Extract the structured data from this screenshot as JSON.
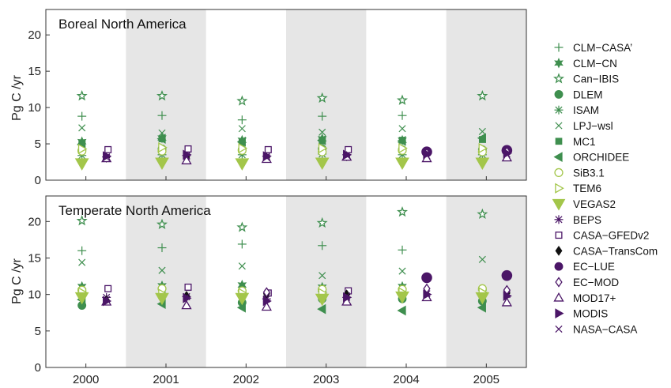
{
  "colors": {
    "green_dark": "#3f8f4f",
    "green_light": "#a3c64a",
    "purple": "#4b1667",
    "band": "#e6e6e6"
  },
  "chart_data": {
    "type": "scatter",
    "ylabel": "Pg C /yr",
    "categories": [
      "2000",
      "2001",
      "2002",
      "2003",
      "2004",
      "2005"
    ],
    "yticks": [
      0,
      5,
      10,
      15,
      20
    ],
    "shaded_categories": [
      "2001",
      "2003",
      "2005"
    ],
    "legend": {
      "placement": "right"
    },
    "models": [
      {
        "name": "CLM−CASA’",
        "marker": "plus",
        "color": "#3f8f4f"
      },
      {
        "name": "CLM−CN",
        "marker": "star6",
        "color": "#3f8f4f"
      },
      {
        "name": "Can−IBIS",
        "marker": "star5open",
        "color": "#3f8f4f"
      },
      {
        "name": "DLEM",
        "marker": "circle",
        "color": "#3f8f4f"
      },
      {
        "name": "ISAM",
        "marker": "asterisk",
        "color": "#3f8f4f"
      },
      {
        "name": "LPJ−wsl",
        "marker": "x",
        "color": "#3f8f4f"
      },
      {
        "name": "MC1",
        "marker": "square",
        "color": "#3f8f4f"
      },
      {
        "name": "ORCHIDEE",
        "marker": "triLeft",
        "color": "#3f8f4f"
      },
      {
        "name": "SiB3.1",
        "marker": "circleOpen",
        "color": "#a3c64a"
      },
      {
        "name": "TEM6",
        "marker": "triRightOpen",
        "color": "#a3c64a"
      },
      {
        "name": "VEGAS2",
        "marker": "triDown",
        "color": "#a3c64a"
      },
      {
        "name": "BEPS",
        "marker": "asterisk",
        "color": "#4b1667"
      },
      {
        "name": "CASA−GFEDv2",
        "marker": "squareOpen",
        "color": "#4b1667"
      },
      {
        "name": "CASA−TransCom",
        "marker": "diamond",
        "color": "#111111"
      },
      {
        "name": "EC−LUE",
        "marker": "circle",
        "color": "#4b1667"
      },
      {
        "name": "EC−MOD",
        "marker": "diamondOpen",
        "color": "#4b1667"
      },
      {
        "name": "MOD17+",
        "marker": "triUpOpen",
        "color": "#4b1667"
      },
      {
        "name": "MODIS",
        "marker": "triRight",
        "color": "#4b1667"
      },
      {
        "name": "NASA−CASA",
        "marker": "x",
        "color": "#4b1667"
      }
    ],
    "panels": [
      {
        "title": "Boreal North America",
        "ylim": [
          0,
          23.5
        ],
        "series": [
          {
            "model": "CLM−CASA’",
            "values": [
              8.8,
              8.9,
              8.3,
              8.8,
              8.9,
              null
            ]
          },
          {
            "model": "CLM−CN",
            "values": [
              5.3,
              5.8,
              5.5,
              5.7,
              5.5,
              null
            ]
          },
          {
            "model": "Can−IBIS",
            "values": [
              11.6,
              11.6,
              10.9,
              11.3,
              11.0,
              11.6
            ]
          },
          {
            "model": "DLEM",
            "values": [
              4.1,
              4.3,
              4.2,
              4.3,
              4.2,
              4.2
            ]
          },
          {
            "model": "ISAM",
            "values": [
              3.4,
              3.5,
              3.5,
              3.6,
              3.5,
              3.5
            ]
          },
          {
            "model": "LPJ−wsl",
            "values": [
              7.2,
              6.5,
              7.1,
              6.6,
              7.1,
              6.7
            ]
          },
          {
            "model": "MC1",
            "values": [
              5.1,
              5.7,
              5.2,
              5.4,
              5.5,
              5.6
            ]
          },
          {
            "model": "ORCHIDEE",
            "values": [
              4.9,
              5.7,
              5.3,
              5.5,
              5.4,
              5.8
            ]
          },
          {
            "model": "SiB3.1",
            "values": [
              4.0,
              4.0,
              4.1,
              3.9,
              4.1,
              3.9
            ]
          },
          {
            "model": "TEM6",
            "values": [
              4.3,
              4.5,
              4.4,
              4.4,
              4.4,
              4.4
            ]
          },
          {
            "model": "VEGAS2",
            "values": [
              2.3,
              2.4,
              2.3,
              2.4,
              2.4,
              2.4
            ]
          },
          {
            "model": "BEPS",
            "values": [
              3.2,
              3.4,
              3.3,
              3.5,
              null,
              null
            ]
          },
          {
            "model": "CASA−GFEDv2",
            "values": [
              4.2,
              4.3,
              4.2,
              4.2,
              null,
              null
            ]
          },
          {
            "model": "CASA−TransCom",
            "values": [
              3.1,
              3.2,
              3.1,
              3.3,
              3.7,
              3.8
            ]
          },
          {
            "model": "EC−LUE",
            "values": [
              null,
              null,
              null,
              null,
              3.9,
              4.1
            ]
          },
          {
            "model": "EC−MOD",
            "values": [
              null,
              null,
              null,
              null,
              3.7,
              3.9
            ]
          },
          {
            "model": "MOD17+",
            "values": [
              3.0,
              2.7,
              2.9,
              3.2,
              3.0,
              3.1
            ]
          },
          {
            "model": "MODIS",
            "values": [
              3.3,
              3.5,
              3.3,
              3.5,
              3.6,
              3.7
            ]
          },
          {
            "model": "NASA−CASA",
            "values": [
              3.1,
              3.3,
              3.1,
              3.4,
              3.4,
              3.6
            ]
          }
        ]
      },
      {
        "title": "Temperate North America",
        "ylim": [
          0,
          23.5
        ],
        "series": [
          {
            "model": "CLM−CASA’",
            "values": [
              16.0,
              16.4,
              16.9,
              16.7,
              16.1,
              null
            ]
          },
          {
            "model": "CLM−CN",
            "values": [
              11.1,
              11.2,
              11.3,
              11.0,
              11.1,
              null
            ]
          },
          {
            "model": "Can−IBIS",
            "values": [
              20.1,
              19.6,
              19.2,
              19.8,
              21.3,
              21.0
            ]
          },
          {
            "model": "DLEM",
            "values": [
              8.5,
              9.8,
              8.9,
              9.4,
              9.4,
              9.1
            ]
          },
          {
            "model": "ISAM",
            "values": [
              10.5,
              10.7,
              10.5,
              10.4,
              10.6,
              10.6
            ]
          },
          {
            "model": "LPJ−wsl",
            "values": [
              14.4,
              13.3,
              13.9,
              12.6,
              13.2,
              14.8
            ]
          },
          {
            "model": "MC1",
            "values": [
              10.0,
              10.2,
              10.0,
              10.1,
              10.1,
              10.1
            ]
          },
          {
            "model": "ORCHIDEE",
            "values": [
              9.3,
              8.7,
              8.2,
              8.0,
              7.8,
              8.2
            ]
          },
          {
            "model": "SiB3.1",
            "values": [
              10.6,
              10.8,
              10.5,
              10.7,
              10.7,
              10.8
            ]
          },
          {
            "model": "TEM6",
            "values": [
              10.3,
              10.1,
              10.2,
              10.2,
              10.3,
              10.3
            ]
          },
          {
            "model": "VEGAS2",
            "values": [
              9.6,
              9.5,
              9.5,
              9.4,
              9.7,
              9.6
            ]
          },
          {
            "model": "BEPS",
            "values": [
              9.6,
              9.7,
              9.4,
              9.6,
              null,
              null
            ]
          },
          {
            "model": "CASA−GFEDv2",
            "values": [
              10.8,
              11.0,
              10.2,
              10.5,
              null,
              null
            ]
          },
          {
            "model": "CASA−TransCom",
            "values": [
              9.2,
              9.8,
              10.1,
              10.0,
              10.0,
              10.2
            ]
          },
          {
            "model": "EC−LUE",
            "values": [
              null,
              null,
              null,
              null,
              12.3,
              12.6
            ]
          },
          {
            "model": "EC−MOD",
            "values": [
              null,
              null,
              10.3,
              null,
              10.8,
              10.6
            ]
          },
          {
            "model": "MOD17+",
            "values": [
              9.0,
              8.5,
              8.3,
              9.0,
              9.6,
              8.9
            ]
          },
          {
            "model": "MODIS",
            "values": [
              9.1,
              9.5,
              9.1,
              9.6,
              10.0,
              9.8
            ]
          },
          {
            "model": "NASA−CASA",
            "values": [
              9.3,
              9.7,
              9.4,
              9.8,
              10.1,
              10.0
            ]
          }
        ]
      }
    ]
  }
}
